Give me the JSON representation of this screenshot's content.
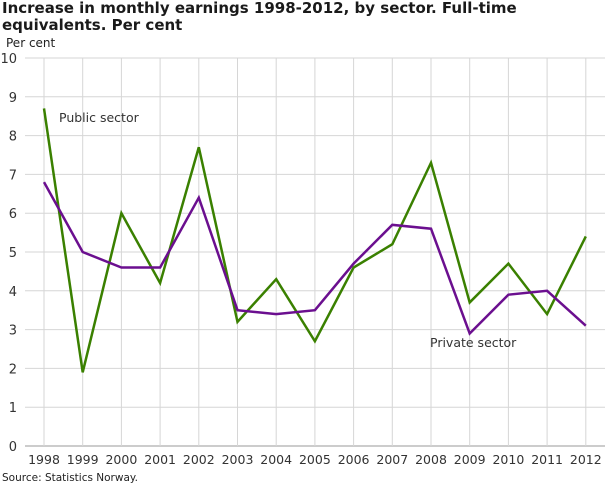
{
  "chart_data": {
    "type": "line",
    "title": "Increase in monthly earnings 1998-2012, by sector. Full-time equivalents. Per cent",
    "ylabel": "Per cent",
    "xlabel": "",
    "source": "Source: Statistics Norway.",
    "x": [
      "1998",
      "1999",
      "2000",
      "2001",
      "2002",
      "2003",
      "2004",
      "2005",
      "2006",
      "2007",
      "2008",
      "2009",
      "2010",
      "2011",
      "2012"
    ],
    "ylim": [
      0,
      10
    ],
    "yticks": [
      0,
      1,
      2,
      3,
      4,
      5,
      6,
      7,
      8,
      9,
      10
    ],
    "grid": true,
    "series": [
      {
        "name": "Public sector",
        "color": "#3a8000",
        "values": [
          8.7,
          1.9,
          6.0,
          4.2,
          7.7,
          3.2,
          4.3,
          2.7,
          4.6,
          5.2,
          7.3,
          3.7,
          4.7,
          3.4,
          5.4
        ]
      },
      {
        "name": "Private sector",
        "color": "#6b0f8f",
        "values": [
          6.8,
          5.0,
          4.6,
          4.6,
          6.4,
          3.5,
          3.4,
          3.5,
          4.7,
          5.7,
          5.6,
          2.9,
          3.9,
          4.0,
          3.1
        ]
      }
    ]
  }
}
